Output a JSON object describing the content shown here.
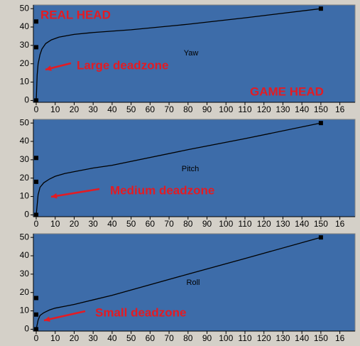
{
  "chart_data": [
    {
      "type": "line",
      "label": "Yaw",
      "annotations": [
        "REAL HEAD",
        "Large deadzone",
        "GAME HEAD"
      ],
      "background": "#3d6ca9",
      "annotation_color": "#e31b23",
      "xlim": [
        -1.5,
        168
      ],
      "ylim": [
        -1,
        52
      ],
      "xticks": [
        0,
        10,
        20,
        30,
        40,
        50,
        60,
        70,
        80,
        90,
        100,
        110,
        120,
        130,
        140,
        150,
        {
          "value": 160,
          "label": "16"
        }
      ],
      "yticks": [
        0,
        10,
        20,
        30,
        40,
        50
      ],
      "series": [
        {
          "color": "#000000",
          "x": [
            0,
            0.5,
            1,
            2,
            3,
            5,
            8,
            12,
            20,
            30,
            50,
            80,
            110,
            150
          ],
          "values": [
            0,
            14,
            20,
            25,
            28,
            31,
            33,
            34.5,
            36,
            37,
            38.5,
            41.5,
            45,
            50
          ]
        },
        {
          "color": "#000000",
          "marker": "square",
          "line": false,
          "x": [
            0,
            0,
            0,
            150
          ],
          "values": [
            0,
            29,
            43,
            50
          ]
        }
      ]
    },
    {
      "type": "line",
      "label": "Pitch",
      "annotations": [
        "Medium deadzone"
      ],
      "background": "#3d6ca9",
      "annotation_color": "#e31b23",
      "xlim": [
        -1.5,
        168
      ],
      "ylim": [
        -1,
        52
      ],
      "xticks": [
        0,
        10,
        20,
        30,
        40,
        50,
        60,
        70,
        80,
        90,
        100,
        110,
        120,
        130,
        140,
        150,
        {
          "value": 160,
          "label": "16"
        }
      ],
      "yticks": [
        0,
        10,
        20,
        30,
        40,
        50
      ],
      "series": [
        {
          "color": "#000000",
          "x": [
            0,
            1,
            2,
            4,
            7,
            10,
            15,
            20,
            30,
            40,
            80,
            110,
            150
          ],
          "values": [
            0,
            11,
            15,
            17.5,
            19.5,
            21,
            22.5,
            23.5,
            25.5,
            27,
            35.5,
            41.5,
            50
          ]
        },
        {
          "color": "#000000",
          "marker": "square",
          "line": false,
          "x": [
            0,
            0,
            0,
            150
          ],
          "values": [
            0,
            18,
            31,
            50
          ]
        }
      ]
    },
    {
      "type": "line",
      "label": "Roll",
      "annotations": [
        "Small deadzone"
      ],
      "background": "#3d6ca9",
      "annotation_color": "#e31b23",
      "xlim": [
        -1.5,
        168
      ],
      "ylim": [
        -1,
        52
      ],
      "xticks": [
        0,
        10,
        20,
        30,
        40,
        50,
        60,
        70,
        80,
        90,
        100,
        110,
        120,
        130,
        140,
        150,
        {
          "value": 160,
          "label": "16"
        }
      ],
      "yticks": [
        0,
        10,
        20,
        30,
        40,
        50
      ],
      "series": [
        {
          "color": "#000000",
          "x": [
            0,
            1,
            2,
            4,
            7,
            10,
            15,
            20,
            30,
            40,
            80,
            110,
            150
          ],
          "values": [
            0,
            5,
            7.5,
            9,
            10.5,
            11.5,
            12.5,
            13.5,
            16,
            18.5,
            30,
            38.5,
            50
          ]
        },
        {
          "color": "#000000",
          "marker": "square",
          "line": false,
          "x": [
            0,
            0,
            0,
            150
          ],
          "values": [
            0,
            8,
            17,
            50
          ]
        }
      ]
    }
  ]
}
